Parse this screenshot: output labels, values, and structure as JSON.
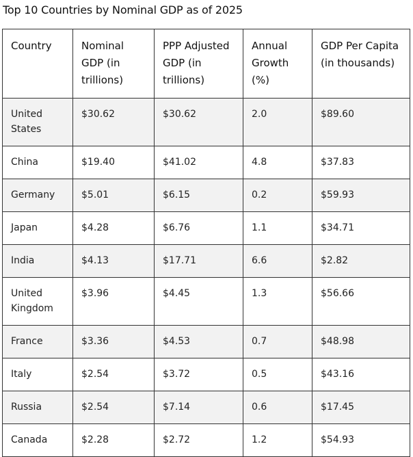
{
  "title": "Top 10 Countries by Nominal GDP as of 2025",
  "table": {
    "headers": [
      "Country",
      "Nominal GDP (in trillions)",
      "PPP Adjusted GDP (in trillions)",
      "Annual Growth (%)",
      "GDP Per Capita (in thousands)"
    ],
    "rows": [
      [
        "United States",
        "$30.62",
        "$30.62",
        "2.0",
        "$89.60"
      ],
      [
        "China",
        "$19.40",
        "$41.02",
        "4.8",
        "$37.83"
      ],
      [
        "Germany",
        "$5.01",
        "$6.15",
        "0.2",
        "$59.93"
      ],
      [
        "Japan",
        "$4.28",
        "$6.76",
        "1.1",
        "$34.71"
      ],
      [
        "India",
        "$4.13",
        "$17.71",
        "6.6",
        "$2.82"
      ],
      [
        "United Kingdom",
        "$3.96",
        "$4.45",
        "1.3",
        "$56.66"
      ],
      [
        "France",
        "$3.36",
        "$4.53",
        "0.7",
        "$48.98"
      ],
      [
        "Italy",
        "$2.54",
        "$3.72",
        "0.5",
        "$43.16"
      ],
      [
        "Russia",
        "$2.54",
        "$7.14",
        "0.6",
        "$17.45"
      ],
      [
        "Canada",
        "$2.28",
        "$2.72",
        "1.2",
        "$54.93"
      ]
    ]
  }
}
